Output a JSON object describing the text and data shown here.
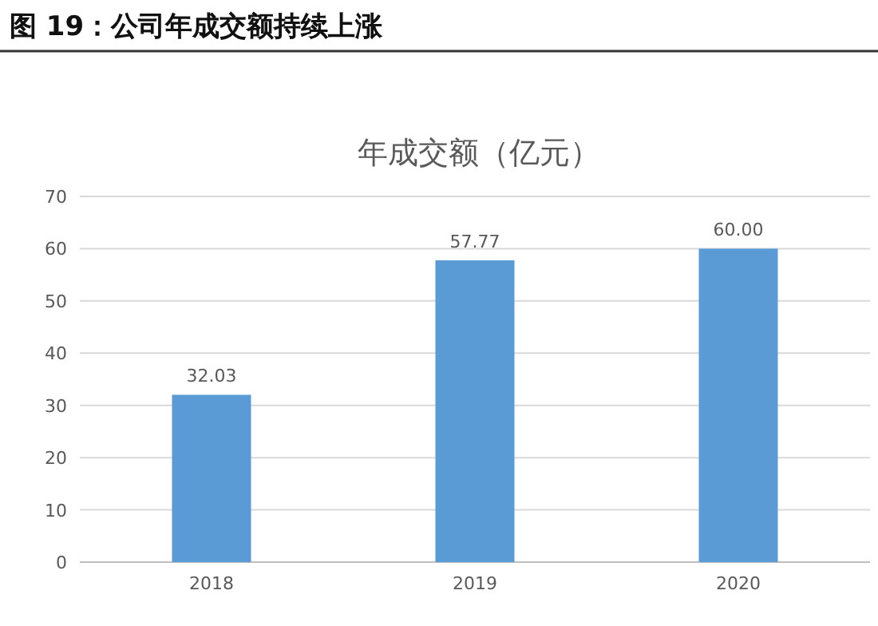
{
  "chart_data": {
    "type": "bar",
    "title": "年成交额（亿元）",
    "subtitle": "图 19：公司年成交额持续上涨",
    "categories": [
      "2018",
      "2019",
      "2020"
    ],
    "values": [
      32.03,
      57.77,
      60.0
    ],
    "value_labels": [
      "32.03",
      "57.77",
      "60.00"
    ],
    "color": "#5b9bd5",
    "ylim": [
      0,
      70
    ],
    "yticks": [
      0,
      10,
      20,
      30,
      40,
      50,
      60,
      70
    ],
    "grid": "y"
  }
}
